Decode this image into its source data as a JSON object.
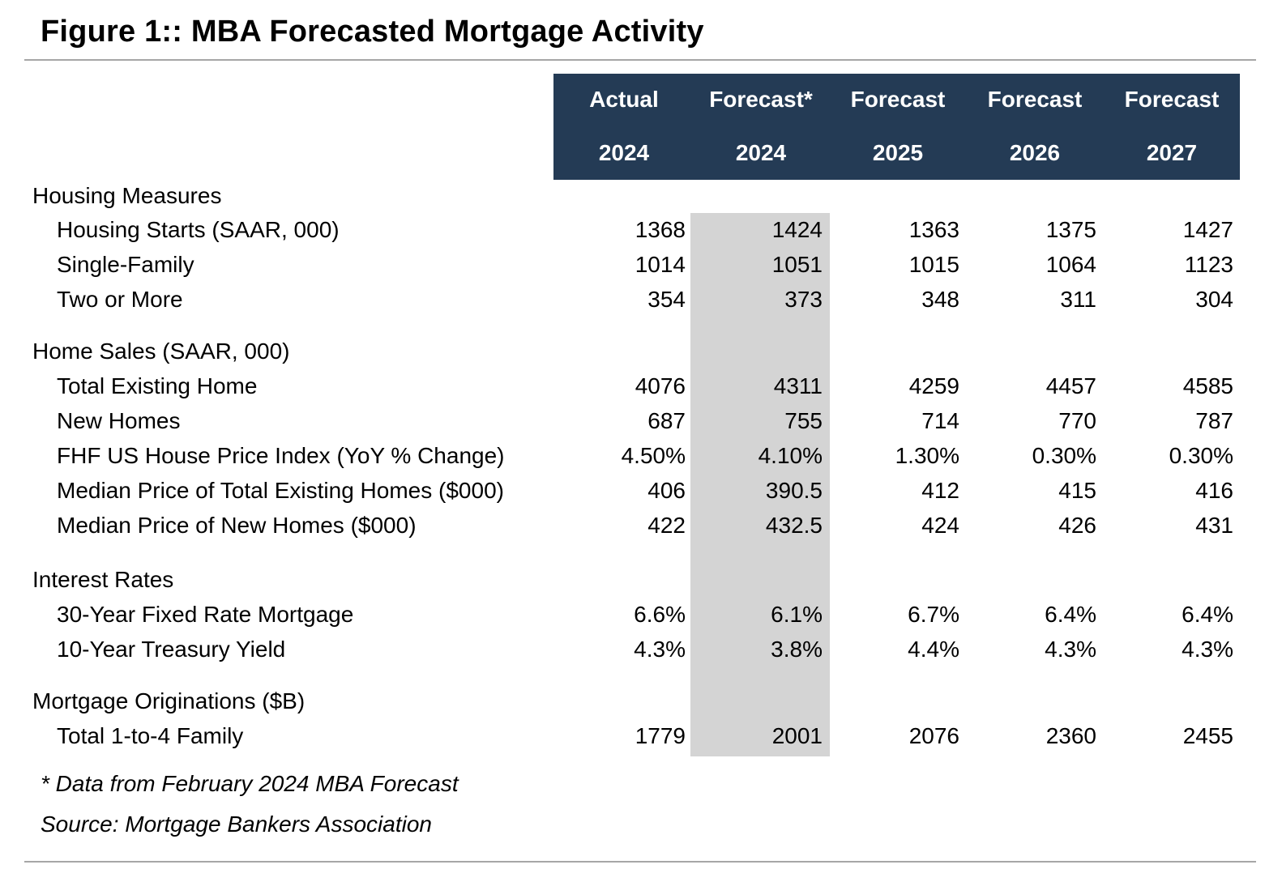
{
  "title": "Figure 1:: MBA Forecasted Mortgage Activity",
  "colors": {
    "header_bg": "#243b55",
    "highlight_column": "#d4d4d4",
    "rule": "#a6a6a6"
  },
  "chart_data": {
    "type": "table",
    "title": "Figure 1:: MBA Forecasted Mortgage Activity",
    "columns": [
      {
        "label": "Actual",
        "year": "2024"
      },
      {
        "label": "Forecast*",
        "year": "2024"
      },
      {
        "label": "Forecast",
        "year": "2025"
      },
      {
        "label": "Forecast",
        "year": "2026"
      },
      {
        "label": "Forecast",
        "year": "2027"
      }
    ],
    "highlighted_column": 1,
    "sections": [
      {
        "label": "Housing Measures",
        "rows": [
          {
            "label": "Housing Starts (SAAR, 000)",
            "values": [
              "1368",
              "1424",
              "1363",
              "1375",
              "1427"
            ]
          },
          {
            "label": "Single-Family",
            "values": [
              "1014",
              "1051",
              "1015",
              "1064",
              "1123"
            ]
          },
          {
            "label": "Two or More",
            "values": [
              "354",
              "373",
              "348",
              "311",
              "304"
            ]
          }
        ]
      },
      {
        "label": "Home Sales (SAAR, 000)",
        "rows": [
          {
            "label": "Total Existing Home",
            "values": [
              "4076",
              "4311",
              "4259",
              "4457",
              "4585"
            ]
          },
          {
            "label": "New Homes",
            "values": [
              "687",
              "755",
              "714",
              "770",
              "787"
            ]
          },
          {
            "label": "FHF US House Price Index (YoY % Change)",
            "values": [
              "4.50%",
              "4.10%",
              "1.30%",
              "0.30%",
              "0.30%"
            ]
          },
          {
            "label": "Median Price of Total Existing Homes ($000)",
            "values": [
              "406",
              "390.5",
              "412",
              "415",
              "416"
            ]
          },
          {
            "label": "Median Price of New Homes ($000)",
            "values": [
              "422",
              "432.5",
              "424",
              "426",
              "431"
            ]
          }
        ]
      },
      {
        "label": "Interest Rates",
        "rows": [
          {
            "label": "30-Year Fixed Rate Mortgage",
            "values": [
              "6.6%",
              "6.1%",
              "6.7%",
              "6.4%",
              "6.4%"
            ]
          },
          {
            "label": "10-Year Treasury Yield",
            "values": [
              "4.3%",
              "3.8%",
              "4.4%",
              "4.3%",
              "4.3%"
            ]
          }
        ]
      },
      {
        "label": "Mortgage Originations ($B)",
        "rows": [
          {
            "label": "Total 1-to-4 Family",
            "values": [
              "1779",
              "2001",
              "2076",
              "2360",
              "2455"
            ]
          }
        ]
      }
    ]
  },
  "footnotes": [
    "* Data from February 2024 MBA Forecast",
    "Source: Mortgage Bankers Association"
  ]
}
